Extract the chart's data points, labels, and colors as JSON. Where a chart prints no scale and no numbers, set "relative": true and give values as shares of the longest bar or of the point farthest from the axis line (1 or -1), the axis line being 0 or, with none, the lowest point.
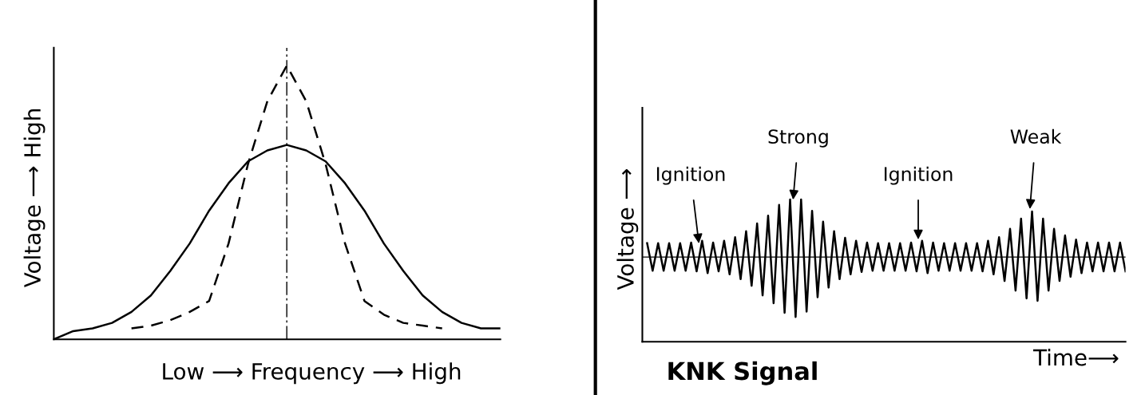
{
  "chart_data": [
    {
      "type": "line",
      "relative": true,
      "xlabel": "Low ⟶ Frequency ⟶ High",
      "ylabel": "Voltage ⟶ High",
      "categories": [
        null,
        null,
        null,
        null,
        null,
        null,
        null,
        null,
        null,
        null,
        null,
        null,
        null,
        null,
        null,
        null,
        null,
        null,
        null,
        null,
        null,
        null,
        null,
        null
      ],
      "series": [
        {
          "color": "#000000",
          "line_style": "solid",
          "values": [
            0,
            0.03,
            0.04,
            0.06,
            0.1,
            0.16,
            0.25,
            0.35,
            0.47,
            0.57,
            0.65,
            0.69,
            0.71,
            0.69,
            0.65,
            0.57,
            0.47,
            0.35,
            0.25,
            0.16,
            0.1,
            0.06,
            0.04,
            0.04
          ]
        },
        {
          "color": "#000000",
          "line_style": "dashed",
          "values": [
            null,
            null,
            null,
            null,
            0.04,
            0.05,
            0.07,
            0.1,
            0.14,
            0.35,
            0.64,
            0.87,
            1,
            0.87,
            0.64,
            0.35,
            0.14,
            0.09,
            0.06,
            0.05,
            0.04,
            null,
            null,
            null
          ]
        }
      ]
    },
    {
      "type": "line",
      "relative": true,
      "title": "KNK Signal",
      "xlabel": "Time⟶",
      "ylabel": "Voltage ⟶",
      "annotations": [
        "Ignition",
        "Strong",
        "Ignition",
        "Weak"
      ],
      "ref_lines": [
        {
          "axis": "y",
          "value": 0,
          "color": "#000000",
          "line_style": "solid"
        }
      ],
      "categories": [
        null,
        null,
        null,
        null,
        null,
        null,
        null,
        null,
        null,
        null,
        null,
        null,
        null,
        null,
        null,
        null,
        null,
        null,
        null,
        null,
        null,
        null,
        null,
        null,
        null,
        null,
        null,
        null,
        null,
        null,
        null,
        null,
        null,
        null,
        null,
        null,
        null,
        null,
        null,
        null,
        null,
        null,
        null,
        null,
        null,
        null,
        null,
        null,
        null,
        null,
        null,
        null,
        null,
        null,
        null,
        null,
        null,
        null,
        null,
        null,
        null,
        null,
        null,
        null,
        null,
        null,
        null,
        null,
        null,
        null,
        null,
        null,
        null,
        null,
        null,
        null,
        null,
        null,
        null,
        null,
        null,
        null,
        null,
        null,
        null,
        null,
        null,
        null
      ],
      "series": [
        {
          "color": "#000000",
          "line_style": "solid",
          "values": [
            0.23,
            -0.23,
            0.23,
            -0.23,
            0.23,
            -0.23,
            0.23,
            -0.23,
            0.24,
            -0.24,
            0.27,
            -0.27,
            0.24,
            -0.24,
            0.27,
            -0.29,
            0.33,
            -0.37,
            0.43,
            -0.48,
            0.56,
            -0.64,
            0.69,
            -0.77,
            0.87,
            -0.93,
            0.96,
            -1,
            0.96,
            -0.91,
            0.77,
            -0.67,
            0.59,
            -0.51,
            0.43,
            -0.37,
            0.32,
            -0.29,
            0.27,
            -0.25,
            0.24,
            -0.23,
            0.23,
            -0.23,
            0.23,
            -0.23,
            0.23,
            -0.23,
            0.24,
            -0.24,
            0.27,
            -0.27,
            0.24,
            -0.23,
            0.23,
            -0.23,
            0.23,
            -0.23,
            0.23,
            -0.23,
            0.23,
            -0.24,
            0.27,
            -0.29,
            0.33,
            -0.4,
            0.47,
            -0.56,
            0.64,
            -0.69,
            0.76,
            -0.73,
            0.64,
            -0.56,
            0.47,
            -0.4,
            0.36,
            -0.33,
            0.29,
            -0.27,
            0.24,
            -0.24,
            0.24,
            -0.24,
            0.24,
            -0.24,
            0.24,
            -0.24
          ]
        }
      ]
    }
  ]
}
